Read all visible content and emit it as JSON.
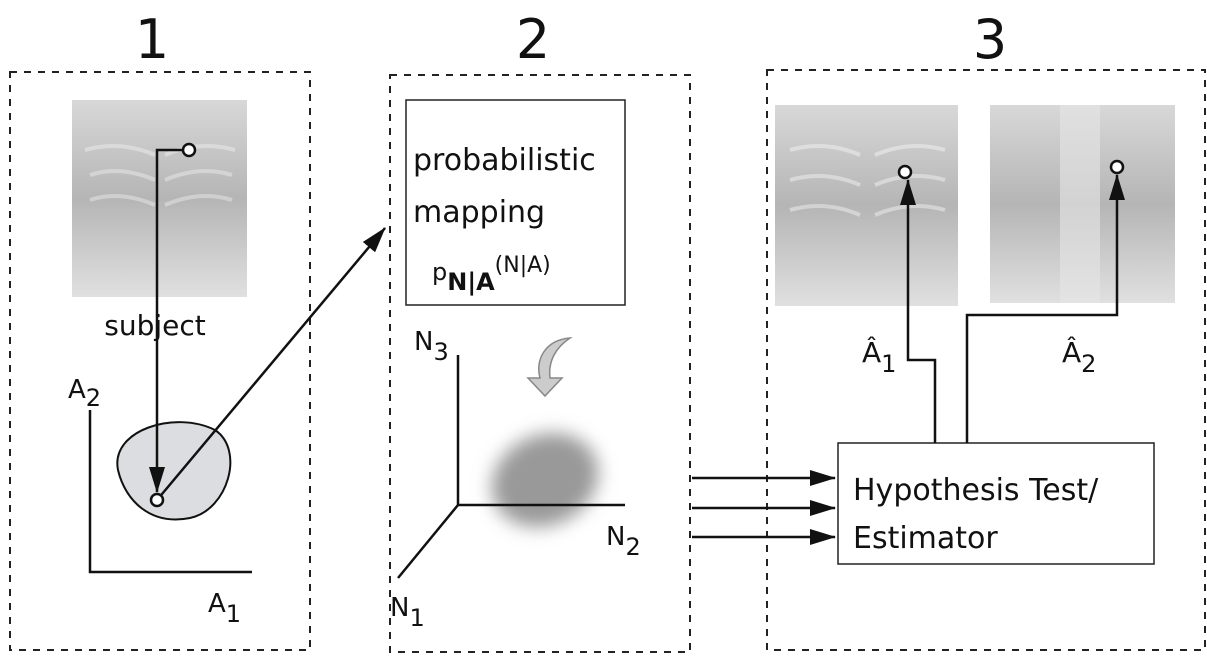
{
  "panels": [
    {
      "number": "1"
    },
    {
      "number": "2"
    },
    {
      "number": "3"
    }
  ],
  "subject": {
    "label": "subject",
    "axes": {
      "x": {
        "base": "A",
        "sub": "1"
      },
      "y": {
        "base": "A",
        "sub": "2"
      }
    }
  },
  "mapping": {
    "lines": [
      "probabilistic",
      "mapping"
    ],
    "formula": {
      "base": "p",
      "sub": "N|A",
      "sup": "(N|A)"
    }
  },
  "noise_axes": [
    {
      "base": "N",
      "sub": "1"
    },
    {
      "base": "N",
      "sub": "2"
    },
    {
      "base": "N",
      "sub": "3"
    }
  ],
  "estimator": {
    "lines": [
      "Hypothesis Test/",
      "Estimator"
    ]
  },
  "estimates": [
    {
      "base": "Â",
      "sub": "1"
    },
    {
      "base": "Â",
      "sub": "2"
    }
  ]
}
